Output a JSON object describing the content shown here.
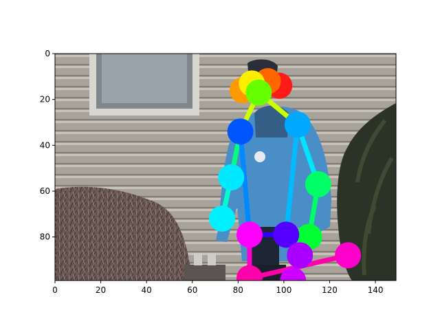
{
  "chart_data": {
    "type": "image",
    "xlim": [
      0,
      149
    ],
    "ylim": [
      99,
      0
    ],
    "x_ticks": [
      0,
      20,
      40,
      60,
      80,
      100,
      120,
      140
    ],
    "y_ticks": [
      0,
      20,
      40,
      60,
      80
    ],
    "image_description": "Person in a blue jacket standing in front of a house with grey siding, a window upper-left, bare shrub lower-left and a dark evergreen on the right, overlaid with a coloured pose skeleton",
    "keypoints": [
      {
        "name": "head-top-red",
        "x": 98,
        "y": 14,
        "color": "#ff1a1a"
      },
      {
        "name": "head-orange",
        "x": 93,
        "y": 12,
        "color": "#ff6600"
      },
      {
        "name": "head-orange-left",
        "x": 82,
        "y": 16,
        "color": "#ff9900"
      },
      {
        "name": "head-yellow",
        "x": 86,
        "y": 13,
        "color": "#ffee00"
      },
      {
        "name": "neck-green",
        "x": 89,
        "y": 17,
        "color": "#66ff00"
      },
      {
        "name": "right-shoulder",
        "x": 81,
        "y": 34,
        "color": "#0055ff"
      },
      {
        "name": "left-shoulder",
        "x": 106,
        "y": 31,
        "color": "#00a8ff"
      },
      {
        "name": "right-elbow",
        "x": 77,
        "y": 54,
        "color": "#00eaff"
      },
      {
        "name": "left-elbow",
        "x": 115,
        "y": 57,
        "color": "#00ff66"
      },
      {
        "name": "right-wrist",
        "x": 73,
        "y": 72,
        "color": "#00f0ff"
      },
      {
        "name": "left-wrist",
        "x": 111,
        "y": 80,
        "color": "#00ff33"
      },
      {
        "name": "right-hip",
        "x": 85,
        "y": 79,
        "color": "#ff00ff"
      },
      {
        "name": "left-hip",
        "x": 101,
        "y": 79,
        "color": "#5500ff"
      },
      {
        "name": "left-knee",
        "x": 107,
        "y": 88,
        "color": "#aa00ff"
      },
      {
        "name": "right-ankle",
        "x": 128,
        "y": 88,
        "color": "#ff00cc"
      },
      {
        "name": "right-knee",
        "x": 85,
        "y": 98,
        "color": "#ff00aa"
      },
      {
        "name": "left-ankle",
        "x": 104,
        "y": 99,
        "color": "#cc00ff"
      }
    ],
    "limbs": [
      {
        "from": "neck-green",
        "to": "right-shoulder",
        "color": "#ccff00"
      },
      {
        "from": "neck-green",
        "to": "left-shoulder",
        "color": "#ccff00"
      },
      {
        "from": "right-shoulder",
        "to": "right-elbow",
        "color": "#00ff80"
      },
      {
        "from": "right-elbow",
        "to": "right-wrist",
        "color": "#00ffcc"
      },
      {
        "from": "left-shoulder",
        "to": "left-elbow",
        "color": "#00e5ff"
      },
      {
        "from": "left-elbow",
        "to": "left-wrist",
        "color": "#00ff66"
      },
      {
        "from": "right-shoulder",
        "to": "right-hip",
        "color": "#0088ff"
      },
      {
        "from": "left-shoulder",
        "to": "left-hip",
        "color": "#00bbff"
      },
      {
        "from": "right-hip",
        "to": "left-hip",
        "color": "#3300ff"
      },
      {
        "from": "right-hip",
        "to": "right-knee",
        "color": "#ff00cc"
      },
      {
        "from": "right-knee",
        "to": "right-ankle",
        "color": "#ff00aa"
      },
      {
        "from": "left-hip",
        "to": "left-knee",
        "color": "#8800ff"
      },
      {
        "from": "left-knee",
        "to": "left-ankle",
        "color": "#bb00ff"
      }
    ]
  }
}
